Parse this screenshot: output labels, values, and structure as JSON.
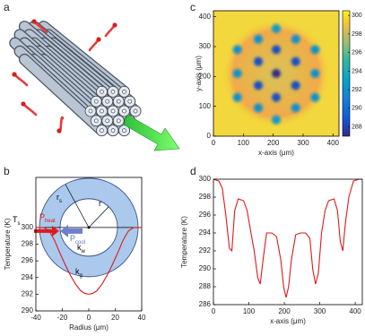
{
  "panel_labels": [
    "a",
    "b",
    "c",
    "d"
  ],
  "chart_data": [
    {
      "type": "line",
      "x": [
        -40,
        -34,
        -30,
        -26,
        -22,
        -18,
        -14,
        -10,
        -6,
        -3,
        0,
        3,
        6,
        10,
        14,
        18,
        22,
        26,
        30,
        34,
        40
      ],
      "values": [
        300,
        300,
        299.6,
        298.5,
        297,
        295.6,
        294.3,
        293.2,
        292.4,
        292.1,
        292,
        292.1,
        292.4,
        293.2,
        294.3,
        295.6,
        297,
        298.5,
        299.6,
        300,
        300
      ],
      "color": "#e0191b",
      "xlim": [
        -40,
        40
      ],
      "xticks": [
        -40,
        -20,
        0,
        20,
        40
      ],
      "ylim": [
        290,
        306
      ],
      "yticks": [
        290,
        292,
        294,
        296,
        298,
        300
      ],
      "xlabel": "Radius (μm)",
      "ylabel": "Temperature (K)",
      "annotations": [
        {
          "text": "T",
          "sub": "s"
        },
        {
          "text": "r",
          "sub": "s"
        },
        {
          "text": "r"
        },
        {
          "text": "P",
          "sub": "heat"
        },
        {
          "text": "P",
          "sub": "cool"
        },
        {
          "text": "k",
          "sub": "w"
        },
        {
          "text": "k",
          "sub": "g"
        }
      ]
    },
    {
      "type": "heatmap",
      "x": [
        210,
        150,
        275,
        80,
        210,
        340,
        150,
        275,
        80,
        210,
        340,
        150,
        275,
        80,
        210,
        340,
        150,
        275,
        210
      ],
      "y": [
        360,
        325,
        325,
        290,
        290,
        290,
        250,
        250,
        210,
        210,
        210,
        170,
        170,
        130,
        130,
        130,
        95,
        95,
        55
      ],
      "values": [
        292.5,
        292,
        292,
        292,
        288.5,
        292,
        288.5,
        288.5,
        292,
        287,
        292,
        288.5,
        288.5,
        292,
        288.5,
        292,
        292,
        292,
        292.5
      ],
      "xlim": [
        0,
        420
      ],
      "ylim": [
        0,
        420
      ],
      "xticks": [
        0,
        100,
        200,
        300,
        400
      ],
      "yticks": [
        0,
        100,
        200,
        300,
        400
      ],
      "xlabel": "x-axis (μm)",
      "ylabel": "y-axis (μm)",
      "clim": [
        287,
        300.5
      ],
      "cticks": [
        288,
        290,
        292,
        294,
        296,
        298,
        300
      ]
    },
    {
      "type": "line",
      "x": [
        0,
        15,
        25,
        35,
        45,
        52,
        60,
        70,
        85,
        95,
        105,
        115,
        125,
        132,
        140,
        150,
        165,
        178,
        190,
        198,
        205,
        212,
        220,
        232,
        245,
        260,
        272,
        280,
        288,
        296,
        305,
        315,
        325,
        340,
        350,
        358,
        365,
        372,
        382,
        395,
        410,
        420
      ],
      "values": [
        300,
        299.8,
        299,
        296,
        292.3,
        292,
        296.5,
        297.8,
        297.6,
        296.5,
        294.2,
        292,
        289,
        288.3,
        291,
        294,
        294,
        293.6,
        291,
        288,
        286.8,
        288,
        291,
        293.8,
        294,
        294,
        293.4,
        290,
        288.3,
        289.5,
        294,
        296.5,
        297.6,
        297.8,
        296.5,
        293,
        292,
        295,
        298,
        299.8,
        300,
        300
      ],
      "color": "#e0191b",
      "xlim": [
        0,
        420
      ],
      "xticks": [
        0,
        100,
        200,
        300,
        400
      ],
      "ylim": [
        286,
        300
      ],
      "yticks": [
        286,
        288,
        290,
        292,
        294,
        296,
        298,
        300
      ],
      "xlabel": "x-axis (μm)",
      "ylabel": "Temperature (K)"
    }
  ]
}
